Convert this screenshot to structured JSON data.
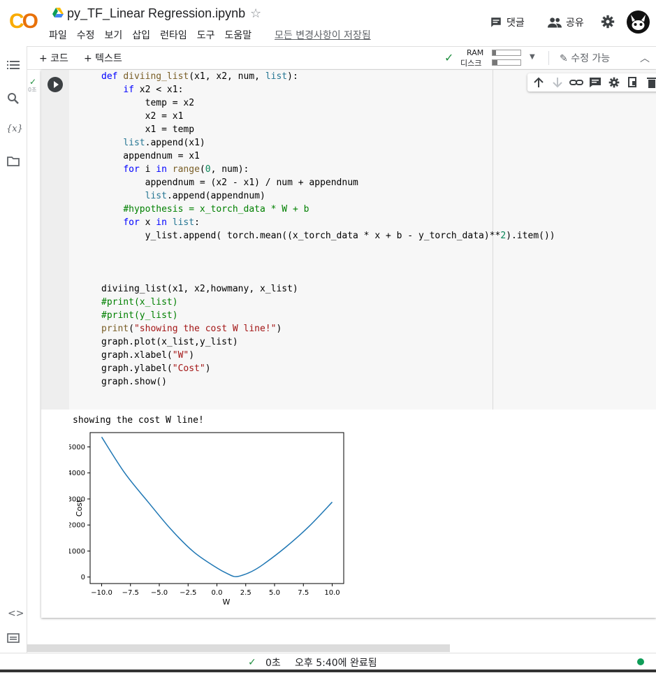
{
  "header": {
    "logo_c": "C",
    "logo_o": "O",
    "title": "py_TF_Linear Regression.ipynb",
    "menu": [
      "파일",
      "수정",
      "보기",
      "삽입",
      "런타임",
      "도구",
      "도움말"
    ],
    "save_status": "모든 변경사항이 저장됨",
    "comment_label": "댓글",
    "share_label": "공유"
  },
  "toolbar": {
    "add_code": "+ 코드",
    "add_text": "+ 텍스트",
    "ram_label": "RAM",
    "disk_label": "디스크",
    "ram_usage": 0.12,
    "disk_usage": 0.18,
    "edit_label": "수정 가능"
  },
  "cell": {
    "exec_time": "0초",
    "output_text": "showing the cost W line!"
  },
  "chart_data": {
    "type": "line",
    "title": "",
    "xlabel": "W",
    "ylabel": "Cost",
    "xlim": [
      -11.0,
      11.0
    ],
    "ylim": [
      -250,
      5550
    ],
    "xticks": [
      -10.0,
      -7.5,
      -5.0,
      -2.5,
      0.0,
      2.5,
      5.0,
      7.5,
      10.0
    ],
    "xtick_labels": [
      "−10.0",
      "−7.5",
      "−5.0",
      "−2.5",
      "0.0",
      "2.5",
      "5.0",
      "7.5",
      "10.0"
    ],
    "yticks": [
      0,
      1000,
      2000,
      3000,
      4000,
      5000
    ],
    "ytick_labels": [
      "0",
      "1000",
      "2000",
      "3000",
      "4000",
      "5000"
    ],
    "series": [
      {
        "name": "cost",
        "color": "#1f77b4",
        "x": [
          -10,
          -8,
          -6,
          -4,
          -2,
          0,
          1,
          1.5,
          2,
          3,
          4,
          6,
          8,
          10
        ],
        "values": [
          5380,
          4000,
          2900,
          1840,
          960,
          350,
          110,
          20,
          40,
          210,
          480,
          1160,
          1950,
          2880
        ]
      }
    ]
  },
  "status": {
    "time": "0초",
    "done": "오후 5:40에 완료됨"
  }
}
